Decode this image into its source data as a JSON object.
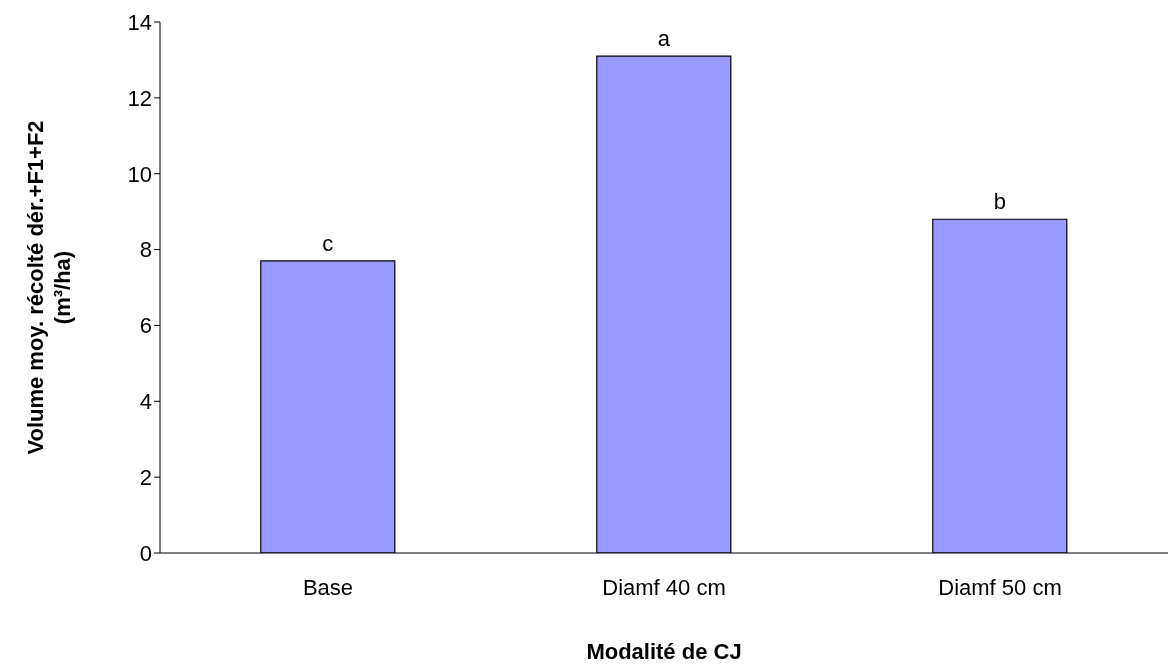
{
  "chart_data": {
    "type": "bar",
    "categories": [
      "Base",
      "Diamf 40 cm",
      "Diamf 50 cm"
    ],
    "values": [
      7.7,
      13.1,
      8.8
    ],
    "color": "#9999ff",
    "xlabel": "Modalité de CJ",
    "ylabel": "Volume moy. récolté dér.+F1+F2\n(m³/ha)",
    "ylim": [
      0,
      14
    ],
    "yticks": [
      0,
      2,
      4,
      6,
      8,
      10,
      12,
      14
    ],
    "grid": false,
    "legend": false,
    "annotations": [
      {
        "text": "c",
        "x": "Base",
        "y": 7.7
      },
      {
        "text": "a",
        "x": "Diamf 40 cm",
        "y": 13.1
      },
      {
        "text": "b",
        "x": "Diamf 50 cm",
        "y": 8.8
      }
    ]
  }
}
